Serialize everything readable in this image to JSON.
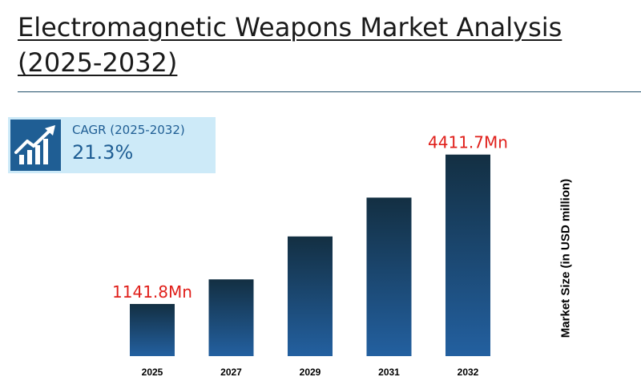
{
  "title": {
    "line1": "Electromagnetic Weapons Market Analysis",
    "line2": "(2025-2032)"
  },
  "cagr": {
    "label": "CAGR (2025-2032)",
    "value": "21.3%",
    "icon": "growth-chart-icon"
  },
  "colors": {
    "bar_top": "#132f42",
    "bar_bottom": "#2360a0",
    "value_label": "#e0201b",
    "cagr_bg": "#cdeaf8",
    "cagr_accent": "#1f5e94",
    "divider": "#1f4e68"
  },
  "chart_data": {
    "type": "bar",
    "categories": [
      "2025",
      "2027",
      "2029",
      "2031",
      "2032"
    ],
    "values": [
      1141.8,
      1680,
      2620,
      3470,
      4411.7
    ],
    "data_labels": [
      "1141.8Mn",
      "",
      "",
      "",
      "4411.7Mn"
    ],
    "ylabel": "Market Size (in USD million)",
    "ylim": [
      0,
      4600
    ],
    "grid": false,
    "legend": "none"
  }
}
